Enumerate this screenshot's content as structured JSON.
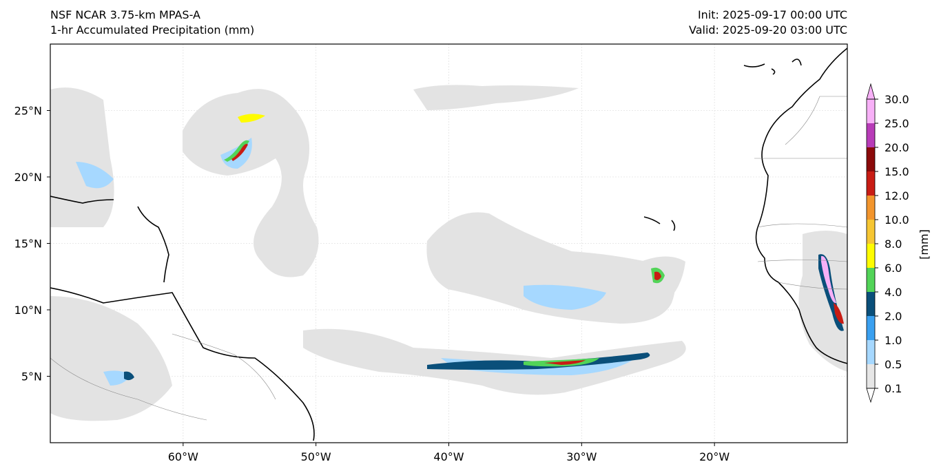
{
  "header": {
    "left_line1": "NSF NCAR 3.75-km MPAS-A",
    "left_line2": "1-hr Accumulated Precipitation (mm)",
    "right_line1": "Init: 2025-09-17 00:00 UTC",
    "right_line2": "Valid: 2025-09-20 03:00 UTC"
  },
  "map": {
    "lon_range": [
      -70,
      -10
    ],
    "lat_range": [
      0,
      30
    ],
    "lon_ticks": [
      {
        "value": -60,
        "label": "60°W"
      },
      {
        "value": -50,
        "label": "50°W"
      },
      {
        "value": -40,
        "label": "40°W"
      },
      {
        "value": -30,
        "label": "30°W"
      },
      {
        "value": -20,
        "label": "20°W"
      }
    ],
    "lat_ticks": [
      {
        "value": 25,
        "label": "25°N"
      },
      {
        "value": 20,
        "label": "20°N"
      },
      {
        "value": 15,
        "label": "15°N"
      },
      {
        "value": 10,
        "label": "10°N"
      },
      {
        "value": 5,
        "label": "5°N"
      }
    ],
    "gridlines": true
  },
  "colorbar": {
    "unit_label": "[mm]",
    "levels": [
      "0.1",
      "0.5",
      "1.0",
      "2.0",
      "4.0",
      "6.0",
      "8.0",
      "10.0",
      "12.0",
      "15.0",
      "20.0",
      "25.0",
      "30.0"
    ],
    "colors": [
      "#e6e6e6",
      "#a6d8ff",
      "#3aa0f0",
      "#0a4f7a",
      "#52d458",
      "#fffc00",
      "#f6c633",
      "#f2952d",
      "#c81c14",
      "#8b0a0a",
      "#b83cb8",
      "#f7b0f7"
    ]
  }
}
